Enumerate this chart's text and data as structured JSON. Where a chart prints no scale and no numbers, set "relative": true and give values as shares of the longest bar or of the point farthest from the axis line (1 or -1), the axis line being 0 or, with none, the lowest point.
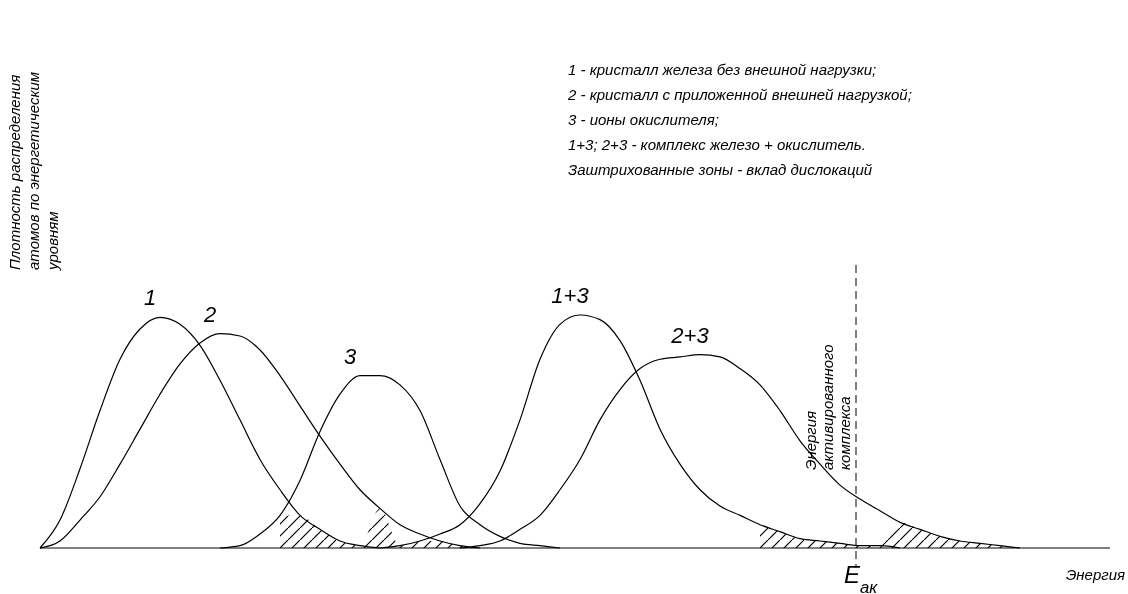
{
  "chart_data": {
    "type": "line",
    "relative": true,
    "xlabel": "Энергия",
    "ylabel": "Плотность распределения атомов по энергетическим уровням",
    "categories": [
      null,
      null,
      null,
      null,
      null,
      null,
      null,
      null,
      null,
      null,
      null,
      null,
      null,
      null,
      null,
      null,
      null,
      null,
      null,
      null,
      null,
      null,
      null,
      null,
      null,
      null,
      null,
      null,
      null,
      null,
      null,
      null,
      null,
      null,
      null,
      null,
      null,
      null,
      null,
      null,
      null,
      null,
      null,
      null,
      null,
      null,
      null,
      null,
      null,
      null,
      null,
      null,
      null,
      null
    ],
    "series": [
      {
        "name": "1",
        "color": "#000000",
        "values": [
          0,
          0.12,
          0.34,
          0.59,
          0.81,
          0.94,
          0.99,
          0.96,
          0.87,
          0.72,
          0.55,
          0.38,
          0.25,
          0.14,
          0.08,
          0.03,
          0.01,
          0,
          null,
          null,
          null,
          null,
          null,
          null,
          null,
          null,
          null,
          null,
          null,
          null,
          null,
          null,
          null,
          null,
          null,
          null,
          null,
          null,
          null,
          null,
          null,
          null,
          null,
          null,
          null,
          null,
          null,
          null,
          null,
          null,
          null,
          null,
          null,
          null
        ]
      },
      {
        "name": "2",
        "color": "#000000",
        "values": [
          0,
          0.03,
          0.12,
          0.22,
          0.36,
          0.51,
          0.66,
          0.79,
          0.88,
          0.92,
          0.91,
          0.85,
          0.74,
          0.61,
          0.48,
          0.36,
          0.25,
          0.17,
          0.1,
          0.06,
          0.03,
          0.01,
          0,
          null,
          null,
          null,
          null,
          null,
          null,
          null,
          null,
          null,
          null,
          null,
          null,
          null,
          null,
          null,
          null,
          null,
          null,
          null,
          null,
          null,
          null,
          null,
          null,
          null,
          null,
          null,
          null,
          null,
          null,
          null
        ]
      },
      {
        "name": "3",
        "color": "#000000",
        "values": [
          null,
          null,
          null,
          null,
          null,
          null,
          null,
          null,
          null,
          0,
          0.01,
          0.06,
          0.14,
          0.29,
          0.5,
          0.66,
          0.74,
          0.74,
          0.7,
          0.59,
          0.38,
          0.18,
          0.1,
          0.05,
          0.02,
          0.01,
          0,
          null,
          null,
          null,
          null,
          null,
          null,
          null,
          null,
          null,
          null,
          null,
          null,
          null,
          null,
          null,
          null,
          null,
          null,
          null,
          null,
          null,
          null,
          null,
          null,
          null,
          null,
          null
        ]
      },
      {
        "name": "1+3",
        "color": "#000000",
        "values": [
          null,
          null,
          null,
          null,
          null,
          null,
          null,
          null,
          null,
          null,
          null,
          null,
          null,
          null,
          null,
          null,
          null,
          0,
          0.01,
          0.03,
          0.06,
          0.1,
          0.19,
          0.33,
          0.55,
          0.81,
          0.96,
          1,
          0.98,
          0.89,
          0.72,
          0.51,
          0.36,
          0.25,
          0.18,
          0.14,
          0.1,
          0.07,
          0.04,
          0.03,
          0.02,
          0.01,
          0.01,
          0,
          null,
          null,
          null,
          null,
          null,
          null,
          null,
          null,
          null,
          null
        ]
      },
      {
        "name": "2+3",
        "color": "#000000",
        "values": [
          null,
          null,
          null,
          null,
          null,
          null,
          null,
          null,
          null,
          null,
          null,
          null,
          null,
          null,
          null,
          null,
          null,
          null,
          null,
          null,
          null,
          0,
          0.01,
          0.03,
          0.08,
          0.14,
          0.25,
          0.38,
          0.55,
          0.68,
          0.77,
          0.81,
          0.82,
          0.83,
          0.82,
          0.77,
          0.7,
          0.59,
          0.46,
          0.36,
          0.27,
          0.21,
          0.16,
          0.11,
          0.08,
          0.05,
          0.03,
          0.02,
          0.01,
          0,
          null,
          null,
          null,
          null
        ]
      }
    ],
    "annotations": [
      "1 - кристалл железа без внешной нагрузки;",
      "2 - кристалл с приложенной внешней нагрузкой;",
      "3 - ионы окислителя;",
      "1+3; 2+3 - комплекс железо + окислитель.",
      "Заштрихованные зоны - вклад дислокаций",
      "Энергия активированного комплекса",
      "E$_{ак}$"
    ]
  }
}
